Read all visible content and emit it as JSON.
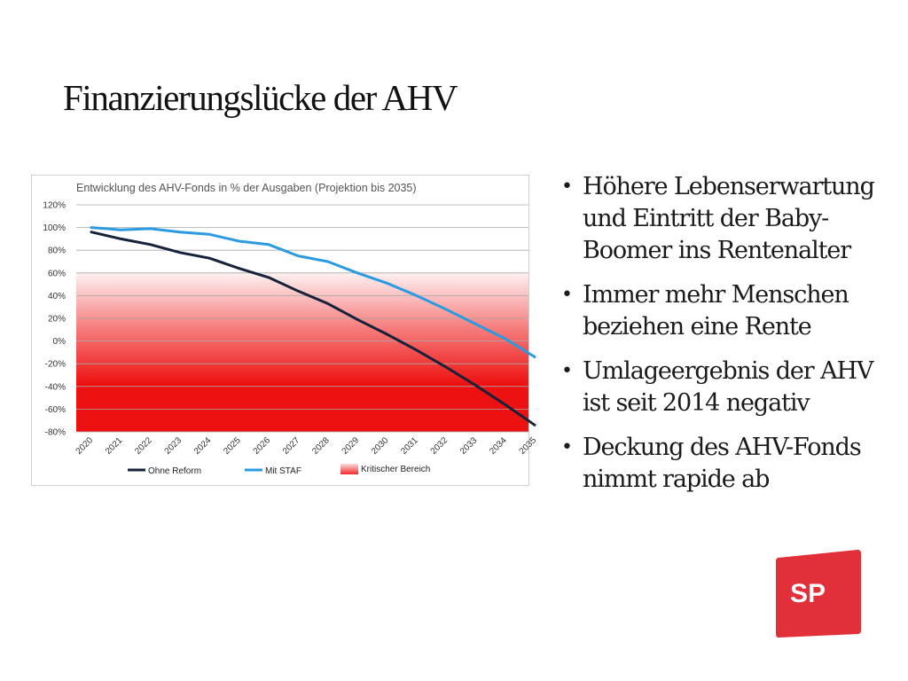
{
  "slide": {
    "title": "Finanzierungslücke der AHV",
    "bullets": [
      "Höhere Lebenserwartung und Eintritt der Baby-Boomer ins Rentenalter",
      "Immer mehr Menschen beziehen eine Rente",
      "Umlageergebnis der AHV ist seit 2014 negativ",
      "Deckung des AHV-Fonds nimmt rapide ab"
    ],
    "logo_text": "SP"
  },
  "chart_data": {
    "type": "line",
    "title": "Entwicklung des AHV-Fonds in % der Ausgaben (Projektion bis 2035)",
    "xlabel": "",
    "ylabel": "",
    "x": [
      "2020",
      "2021",
      "2022",
      "2023",
      "2024",
      "2025",
      "2026",
      "2027",
      "2028",
      "2029",
      "2030",
      "2031",
      "2032",
      "2033",
      "2034",
      "2035"
    ],
    "yticks": [
      "120%",
      "100%",
      "80%",
      "60%",
      "40%",
      "20%",
      "0%",
      "-20%",
      "-40%",
      "-60%",
      "-80%"
    ],
    "ylim": [
      -80,
      120
    ],
    "grid": true,
    "legend_position": "bottom",
    "series": [
      {
        "name": "Ohne Reform",
        "color": "#16213a",
        "values": [
          96,
          90,
          85,
          78,
          73,
          64,
          56,
          44,
          33,
          19,
          6,
          -8,
          -23,
          -39,
          -56,
          -74
        ]
      },
      {
        "name": "Mit STAF",
        "color": "#2a9be0",
        "values": [
          100,
          98,
          99,
          96,
          94,
          88,
          85,
          75,
          70,
          60,
          51,
          40,
          28,
          15,
          2,
          -14
        ]
      }
    ],
    "critical_zone": {
      "label": "Kritischer Bereich",
      "from": -80,
      "to": 60,
      "color": "#ee1111"
    }
  },
  "colors": {
    "logo": "#e2303a",
    "title": "#111111"
  }
}
